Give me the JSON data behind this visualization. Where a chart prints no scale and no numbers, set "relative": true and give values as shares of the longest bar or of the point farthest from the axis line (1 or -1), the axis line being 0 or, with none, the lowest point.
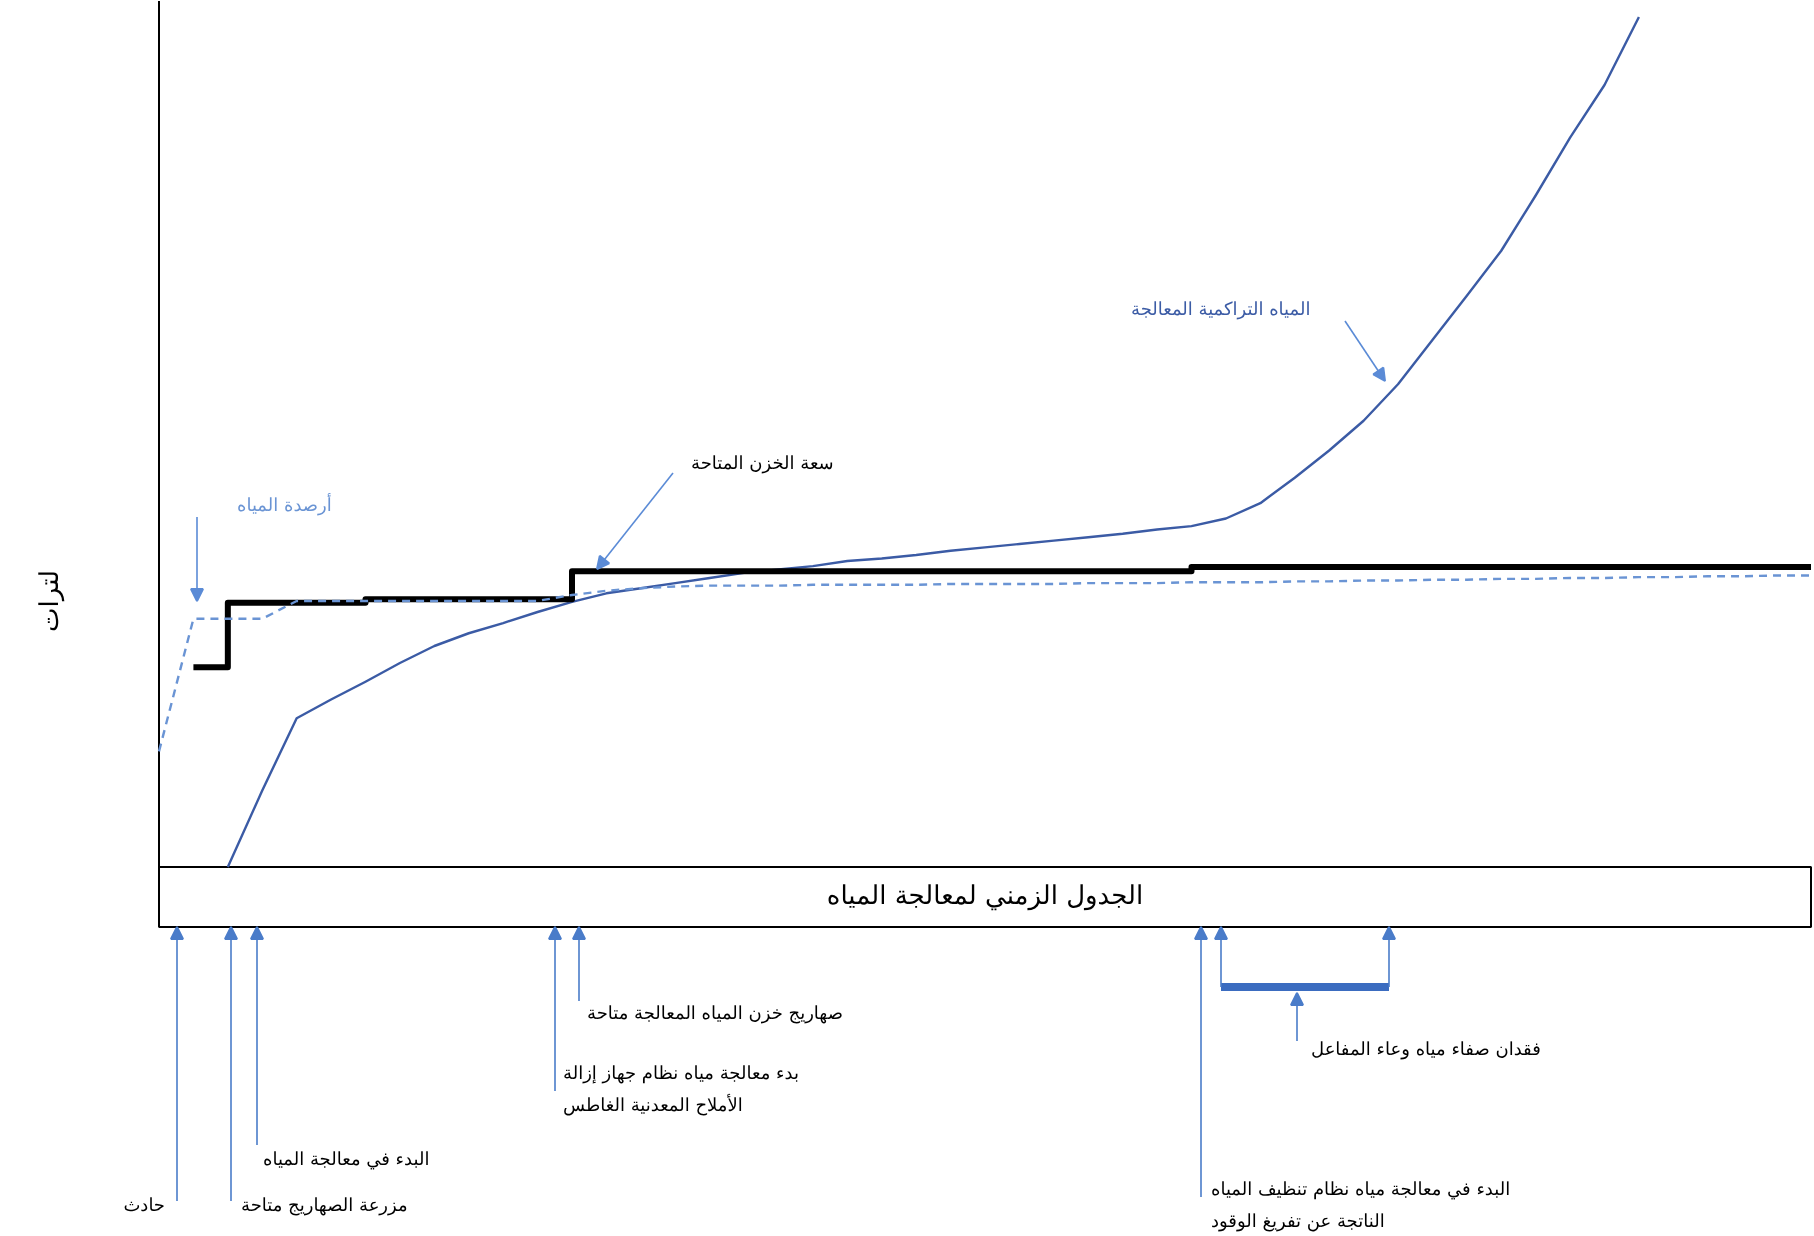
{
  "chart_data": {
    "type": "line",
    "relative": true,
    "xlabel": "الجدول الزمني لمعالجة المياه",
    "ylabel": "لترات",
    "categories": [
      null,
      null,
      null,
      null,
      null,
      null,
      null,
      null,
      null,
      null,
      null,
      null,
      null,
      null,
      null,
      null,
      null,
      null,
      null,
      null,
      null,
      null,
      null,
      null,
      null,
      null,
      null,
      null,
      null,
      null,
      null,
      null,
      null,
      null,
      null,
      null,
      null,
      null,
      null,
      null,
      null,
      null,
      null,
      null,
      null,
      null,
      null,
      null,
      null
    ],
    "series": [
      {
        "name": "المياه التراكمية المعالجة",
        "color": "#3b5ba5",
        "values": [
          null,
          null,
          0,
          0.09,
          0.175,
          0.197,
          0.218,
          0.24,
          0.26,
          0.275,
          0.287,
          0.3,
          0.312,
          0.322,
          0.328,
          0.334,
          0.34,
          0.346,
          0.35,
          0.354,
          0.36,
          0.363,
          0.367,
          0.372,
          0.376,
          0.38,
          0.384,
          0.388,
          0.392,
          0.397,
          0.401,
          0.41,
          0.428,
          0.458,
          0.49,
          0.525,
          0.568,
          0.62,
          0.672,
          0.725,
          0.79,
          0.858,
          0.92,
          1.0,
          null,
          null,
          null,
          null,
          null
        ]
      },
      {
        "name": "سعة الخزن المتاحة",
        "type": "step",
        "color": "#000000",
        "values": [
          null,
          0.235,
          0.311,
          0.311,
          0.311,
          0.311,
          0.315,
          0.315,
          0.315,
          0.315,
          0.315,
          0.315,
          0.348,
          0.348,
          0.348,
          0.348,
          0.348,
          0.348,
          0.348,
          0.348,
          0.348,
          0.348,
          0.348,
          0.348,
          0.348,
          0.348,
          0.348,
          0.348,
          0.348,
          0.348,
          0.353,
          0.353,
          0.353,
          0.353,
          0.353,
          0.353,
          0.353,
          0.353,
          0.353,
          0.353,
          0.353,
          0.353,
          0.353,
          0.353,
          0.353,
          0.353,
          0.353,
          0.353,
          0.353
        ]
      },
      {
        "name": "أرصدة المياه",
        "color": "#6a94d4",
        "line_style": "dashed",
        "values": [
          0.136,
          0.292,
          0.292,
          0.292,
          0.313,
          0.313,
          0.313,
          0.313,
          0.313,
          0.313,
          0.313,
          0.313,
          0.32,
          0.325,
          0.328,
          0.33,
          0.331,
          0.331,
          0.331,
          0.332,
          0.332,
          0.332,
          0.332,
          0.333,
          0.333,
          0.333,
          0.333,
          0.334,
          0.334,
          0.334,
          0.335,
          0.335,
          0.335,
          0.336,
          0.336,
          0.337,
          0.337,
          0.338,
          0.338,
          0.339,
          0.339,
          0.34,
          0.34,
          0.341,
          0.341,
          0.342,
          0.342,
          0.343,
          0.343
        ]
      }
    ],
    "annotations": [
      "حادث",
      "مزرعة الصهاريج متاحة",
      "البدء في معالجة المياه",
      "بدء معالجة مياه نظام جهاز إزالة\nالأملاح المعدنية الغاطس",
      "صهاريج خزن المياه المعالجة متاحة",
      "البدء في معالجة مياه نظام تنظيف المياه\nالناتجة عن تفريغ الوقود",
      "فقدان صفاء مياه وعاء المفاعل"
    ]
  }
}
